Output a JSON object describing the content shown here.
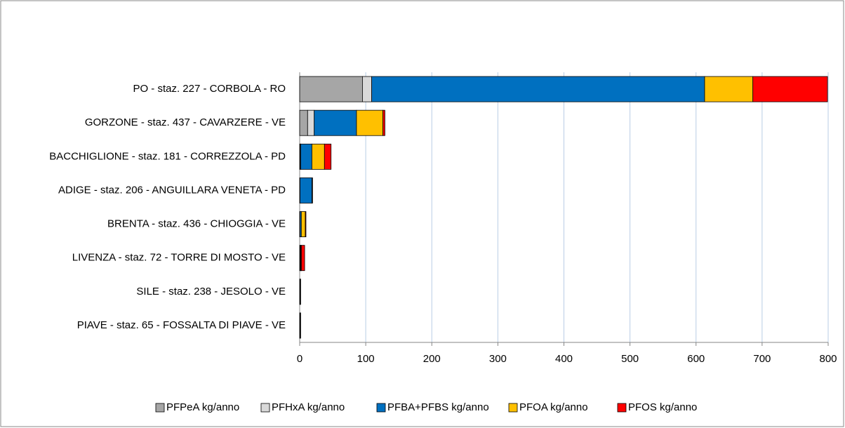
{
  "chart_data": {
    "type": "stacked_barh",
    "categories": [
      "PO - staz. 227 - CORBOLA - RO",
      "GORZONE - staz. 437 - CAVARZERE - VE",
      "BACCHIGLIONE - staz. 181 - CORREZZOLA - PD",
      "ADIGE - staz. 206 - ANGUILLARA VENETA - PD",
      "BRENTA - staz. 436 - CHIOGGIA - VE",
      "LIVENZA - staz. 72 - TORRE DI MOSTO - VE",
      "SILE - staz. 238 - JESOLO - VE",
      "PIAVE - staz. 65 - FOSSALTA DI PIAVE - VE"
    ],
    "series": [
      {
        "name": "PFPeA kg/anno",
        "color": "#a6a6a6",
        "values": [
          95,
          12,
          1,
          0.5,
          0.5,
          1,
          0.5,
          0.5
        ]
      },
      {
        "name": "PFHxA kg/anno",
        "color": "#d9d9d9",
        "values": [
          14,
          10,
          0.5,
          0,
          0,
          0.5,
          0,
          0
        ]
      },
      {
        "name": "PFBA+PFBS kg/anno",
        "color": "#0070c0",
        "values": [
          504,
          64,
          17,
          18,
          2,
          0.5,
          0.5,
          0.5
        ]
      },
      {
        "name": "PFOA kg/anno",
        "color": "#ffc000",
        "values": [
          73,
          40,
          19,
          0.5,
          6,
          0.5,
          0.5,
          0.5
        ]
      },
      {
        "name": "PFOS kg/anno",
        "color": "#ff0000",
        "values": [
          113,
          3,
          10,
          0.5,
          1,
          5,
          0,
          0
        ]
      }
    ],
    "xlim": [
      0,
      800
    ],
    "xticks": [
      0,
      100,
      200,
      300,
      400,
      500,
      600,
      700,
      800
    ],
    "grid": true,
    "legend": "bottom"
  }
}
